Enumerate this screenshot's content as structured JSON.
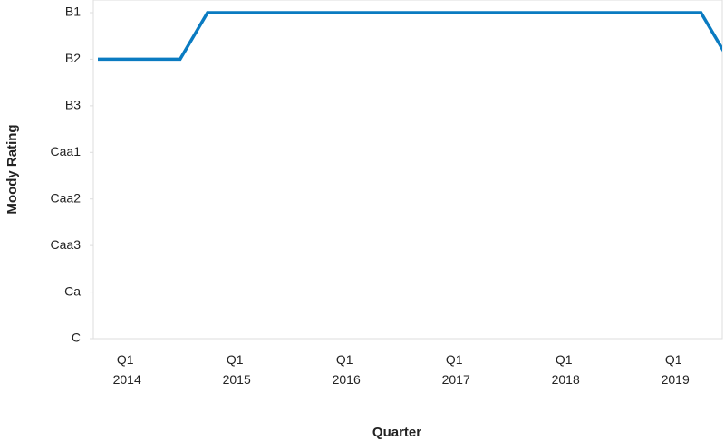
{
  "chart_data": {
    "type": "line",
    "y_label": "Moody Rating",
    "x_label": "Quarter",
    "categories": [
      null,
      "Q1 2014",
      null,
      null,
      null,
      "Q1 2015",
      null,
      null,
      null,
      "Q1 2016",
      null,
      null,
      null,
      "Q1 2017",
      null,
      null,
      null,
      "Q1 2018",
      null,
      null,
      null,
      "Q1 2019",
      null,
      null
    ],
    "series": [
      {
        "name": "Moody Rating",
        "color": "#0a7bc1",
        "values": [
          6,
          6,
          6,
          6,
          7,
          7,
          7,
          7,
          7,
          7,
          7,
          7,
          7,
          7,
          7,
          7,
          7,
          7,
          7,
          7,
          7,
          7,
          7,
          6
        ]
      }
    ],
    "ylim": [
      0,
      7
    ],
    "yticks": [
      {
        "value": 0,
        "label": "C"
      },
      {
        "value": 1,
        "label": "Ca"
      },
      {
        "value": 2,
        "label": "Caa3"
      },
      {
        "value": 3,
        "label": "Caa2"
      },
      {
        "value": 4,
        "label": "Caa1"
      },
      {
        "value": 5,
        "label": "B3"
      },
      {
        "value": 6,
        "label": "B2"
      },
      {
        "value": 7,
        "label": "B1"
      }
    ]
  }
}
